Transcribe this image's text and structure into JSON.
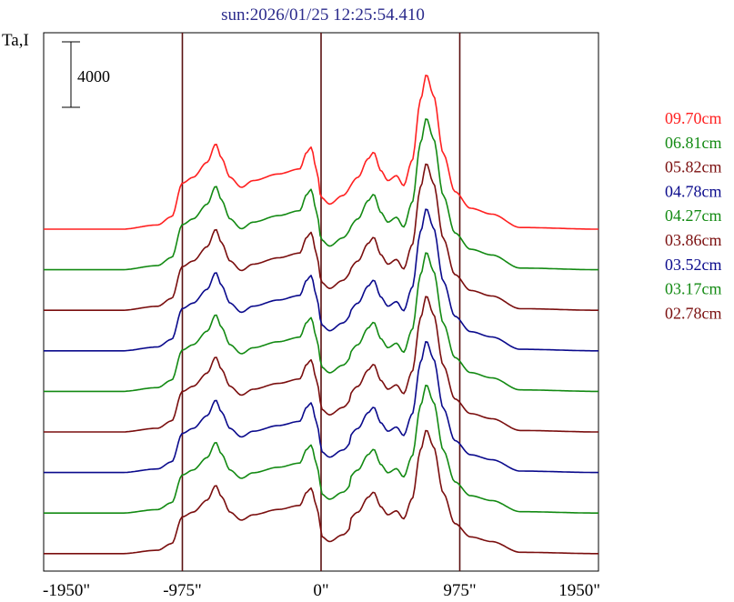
{
  "chart_data": {
    "type": "line",
    "title": "sun:2026/01/25 12:25:54.410",
    "ylabel": "Ta,I",
    "scale_bar_label": "4000",
    "scale_bar_value": 4000,
    "x_ticks": [
      {
        "value": -1950,
        "label": "-1950\""
      },
      {
        "value": -975,
        "label": "-975\""
      },
      {
        "value": 0,
        "label": "0\""
      },
      {
        "value": 975,
        "label": "975\""
      },
      {
        "value": 1950,
        "label": "1950\""
      }
    ],
    "xlim": [
      -1950,
      1950
    ],
    "vertical_markers": [
      -975,
      0,
      975
    ],
    "series": [
      {
        "name": "09.70cm",
        "color": "#ff2020",
        "scale": 1.0,
        "gap": 0.0
      },
      {
        "name": "06.81cm",
        "color": "#138a13",
        "scale": 0.98,
        "gap": 0.02
      },
      {
        "name": "05.82cm",
        "color": "#7a0e0e",
        "scale": 0.95,
        "gap": 0.04
      },
      {
        "name": "04.78cm",
        "color": "#0a0a8c",
        "scale": 0.92,
        "gap": 0.06
      },
      {
        "name": "04.27cm",
        "color": "#138a13",
        "scale": 0.9,
        "gap": 0.08
      },
      {
        "name": "03.86cm",
        "color": "#7a0e0e",
        "scale": 0.88,
        "gap": 0.1
      },
      {
        "name": "03.52cm",
        "color": "#0a0a8c",
        "scale": 0.85,
        "gap": 0.12
      },
      {
        "name": "03.17cm",
        "color": "#138a13",
        "scale": 0.83,
        "gap": 0.14
      },
      {
        "name": "02.78cm",
        "color": "#7a0e0e",
        "scale": 0.8,
        "gap": 0.16
      }
    ],
    "profile_shape": [
      [
        -1950,
        0.0
      ],
      [
        -1400,
        0.0
      ],
      [
        -1150,
        0.05
      ],
      [
        -1050,
        0.15
      ],
      [
        -975,
        0.55
      ],
      [
        -900,
        0.62
      ],
      [
        -800,
        0.8
      ],
      [
        -740,
        1.02
      ],
      [
        -700,
        0.85
      ],
      [
        -640,
        0.62
      ],
      [
        -560,
        0.5
      ],
      [
        -480,
        0.58
      ],
      [
        -300,
        0.66
      ],
      [
        -150,
        0.72
      ],
      [
        -100,
        0.92
      ],
      [
        -70,
        0.98
      ],
      [
        -30,
        0.7
      ],
      [
        0,
        0.38
      ],
      [
        60,
        0.3
      ],
      [
        150,
        0.4
      ],
      [
        260,
        0.62
      ],
      [
        330,
        0.84
      ],
      [
        370,
        0.92
      ],
      [
        420,
        0.7
      ],
      [
        470,
        0.58
      ],
      [
        530,
        0.64
      ],
      [
        580,
        0.52
      ],
      [
        640,
        0.82
      ],
      [
        700,
        1.55
      ],
      [
        740,
        1.85
      ],
      [
        790,
        1.6
      ],
      [
        860,
        0.9
      ],
      [
        940,
        0.45
      ],
      [
        1050,
        0.25
      ],
      [
        1200,
        0.18
      ],
      [
        1400,
        0.02
      ],
      [
        1950,
        0.0
      ]
    ]
  }
}
